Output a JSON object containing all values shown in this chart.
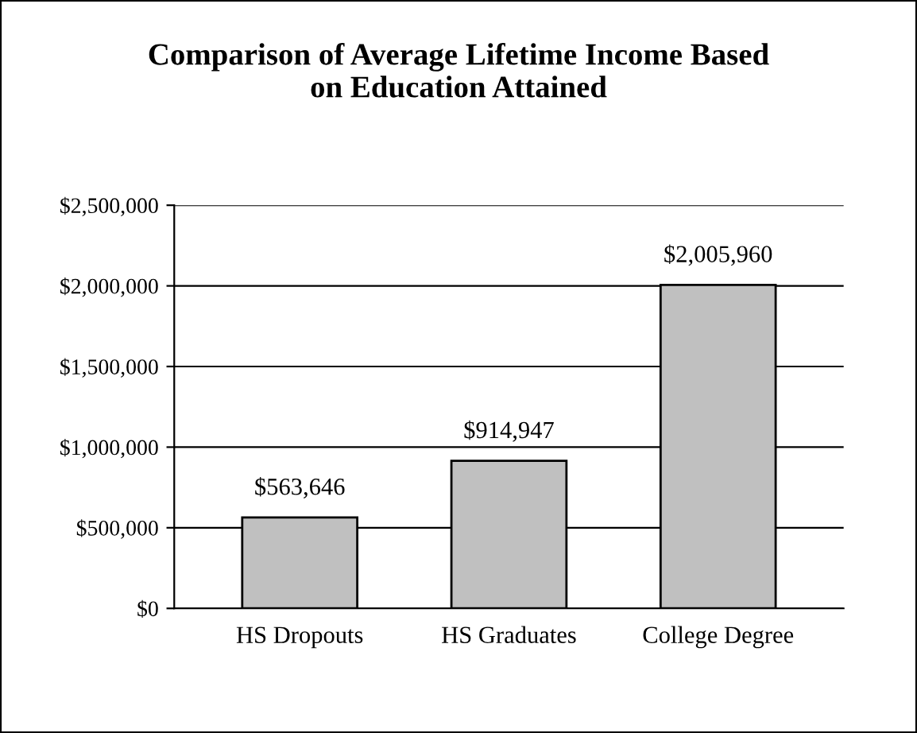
{
  "chart_data": {
    "type": "bar",
    "title": "Comparison of Average Lifetime Income Based\non Education Attained",
    "categories": [
      "HS Dropouts",
      "HS Graduates",
      "College Degree"
    ],
    "values": [
      563646,
      914947,
      2005960
    ],
    "value_labels": [
      "$563,646",
      "$914,947",
      "$2,005,960"
    ],
    "color": "#c0c0c0",
    "ylim": [
      0,
      2500000
    ],
    "yticks": [
      {
        "value": 0,
        "label": "$0"
      },
      {
        "value": 500000,
        "label": "$500,000"
      },
      {
        "value": 1000000,
        "label": "$1,000,000"
      },
      {
        "value": 1500000,
        "label": "$1,500,000"
      },
      {
        "value": 2000000,
        "label": "$2,000,000"
      },
      {
        "value": 2500000,
        "label": "$2,500,000"
      }
    ],
    "grid": "y",
    "legend": false
  }
}
